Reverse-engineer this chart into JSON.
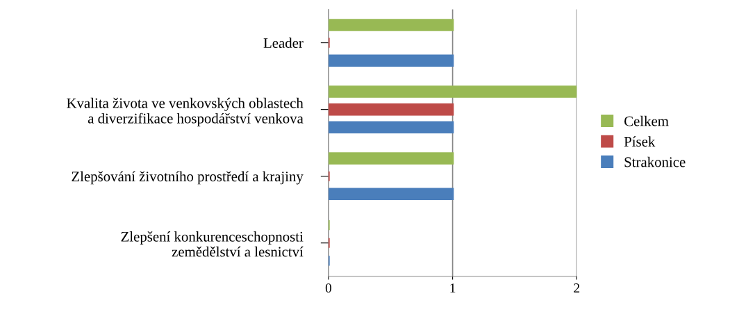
{
  "chart_data": {
    "type": "bar",
    "orientation": "horizontal",
    "categories": [
      "Leader",
      "Kvalita života ve venkovských oblastech\na diverzifikace hospodářství venkova",
      "Zlepšování životního prostředí a krajiny",
      "Zlepšení konkurenceschopnosti\nzemědělství a lesnictví"
    ],
    "series": [
      {
        "name": "Strakonice",
        "color": "#4a7ebb",
        "values": [
          1,
          1,
          1,
          0
        ]
      },
      {
        "name": "Písek",
        "color": "#be4b48",
        "values": [
          0,
          1,
          0,
          0
        ]
      },
      {
        "name": "Celkem",
        "color": "#98b954",
        "values": [
          1,
          2,
          1,
          0
        ]
      }
    ],
    "xlim": [
      0,
      2
    ],
    "xticks": [
      0,
      1,
      2
    ],
    "grid": "x",
    "legend": "right"
  }
}
